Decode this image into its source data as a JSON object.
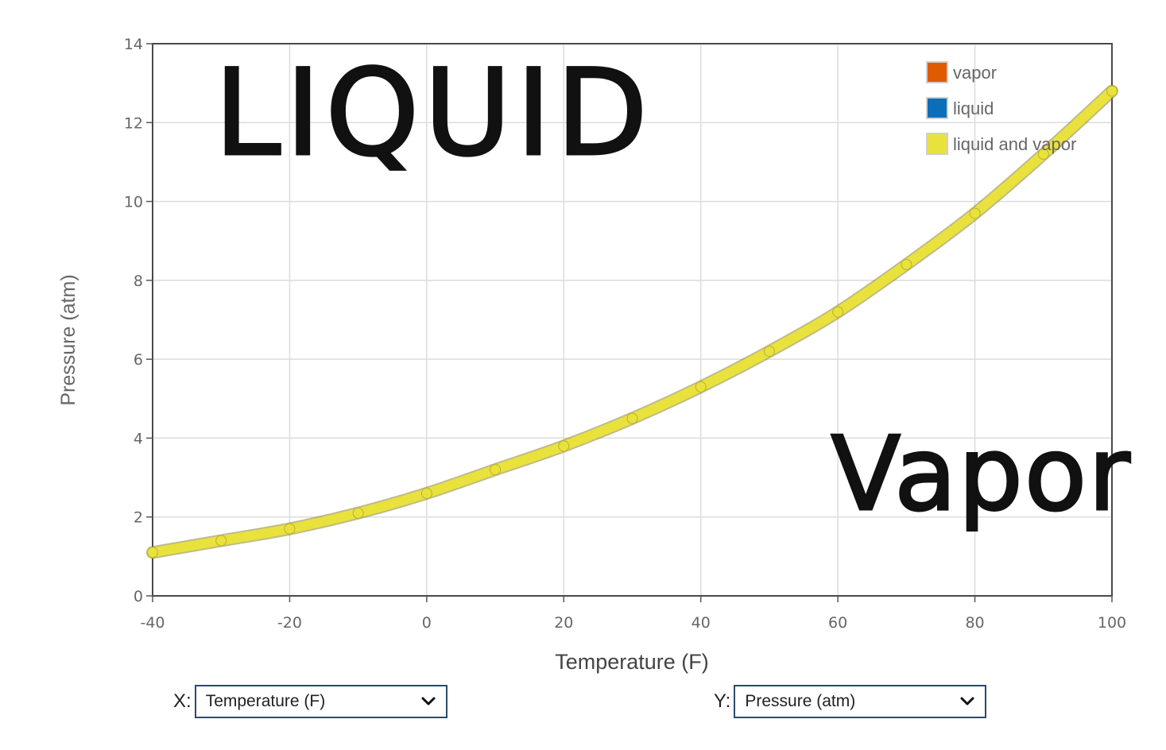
{
  "chart_data": {
    "type": "line",
    "xlabel": "Temperature (F)",
    "ylabel": "Pressure (atm)",
    "xlim": [
      -40,
      100
    ],
    "ylim": [
      0,
      14
    ],
    "x_ticks": [
      "-40",
      "-20",
      "0",
      "20",
      "40",
      "60",
      "80",
      "100"
    ],
    "y_ticks": [
      "0",
      "2",
      "4",
      "6",
      "8",
      "10",
      "12",
      "14"
    ],
    "grid": true,
    "legend": {
      "placement": "top-right",
      "entries": [
        {
          "name": "vapor",
          "color": "#e05a00"
        },
        {
          "name": "liquid",
          "color": "#0a6fb8"
        },
        {
          "name": "liquid and vapor",
          "color": "#eae23c"
        }
      ]
    },
    "series": [
      {
        "name": "liquid and vapor",
        "color": "#eae23c",
        "x": [
          -40,
          -30,
          -20,
          -10,
          0,
          10,
          20,
          30,
          40,
          50,
          60,
          70,
          80,
          90,
          100
        ],
        "y": [
          1.1,
          1.4,
          1.7,
          2.1,
          2.6,
          3.2,
          3.8,
          4.5,
          5.3,
          6.2,
          7.2,
          8.4,
          9.7,
          11.2,
          12.8
        ]
      }
    ],
    "annotations": [
      {
        "text": "LIQUID",
        "x": -31,
        "y": 11.2
      },
      {
        "text": "Vapor",
        "x": 59,
        "y": 2.2
      }
    ]
  },
  "controls": {
    "x_label": "X:",
    "x_value": "Temperature (F)",
    "y_label": "Y:",
    "y_value": "Pressure (atm)"
  },
  "icons": {
    "dropdown": "chevron-down-icon"
  }
}
